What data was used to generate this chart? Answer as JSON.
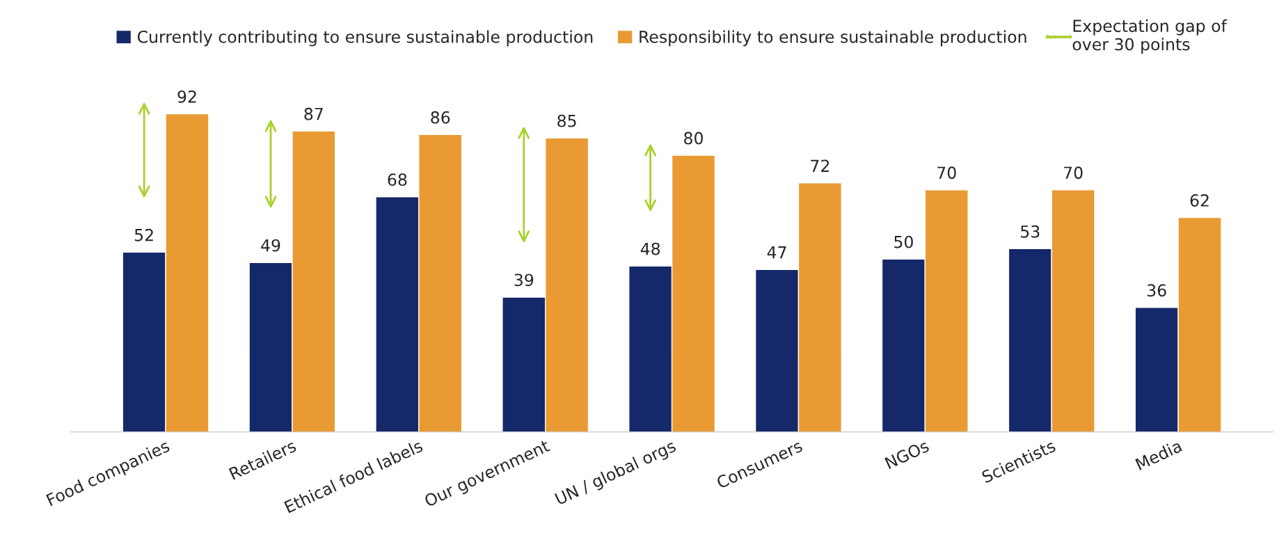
{
  "chart_data": {
    "type": "bar",
    "categories": [
      "Food companies",
      "Retailers",
      "Ethical food labels",
      "Our government",
      "UN / global orgs",
      "Consumers",
      "NGOs",
      "Scientists",
      "Media"
    ],
    "series": [
      {
        "name": "Currently contributing to ensure sustainable production",
        "color": "#15286a",
        "values": [
          52,
          49,
          68,
          39,
          48,
          47,
          50,
          53,
          36
        ]
      },
      {
        "name": "Responsibility to ensure sustainable production",
        "color": "#e99a33",
        "values": [
          92,
          87,
          86,
          85,
          80,
          72,
          70,
          70,
          62
        ]
      }
    ],
    "data_labels": true,
    "legend": "top",
    "grid": false,
    "annotations": [
      "Expectation gap of over 30 points"
    ]
  }
}
